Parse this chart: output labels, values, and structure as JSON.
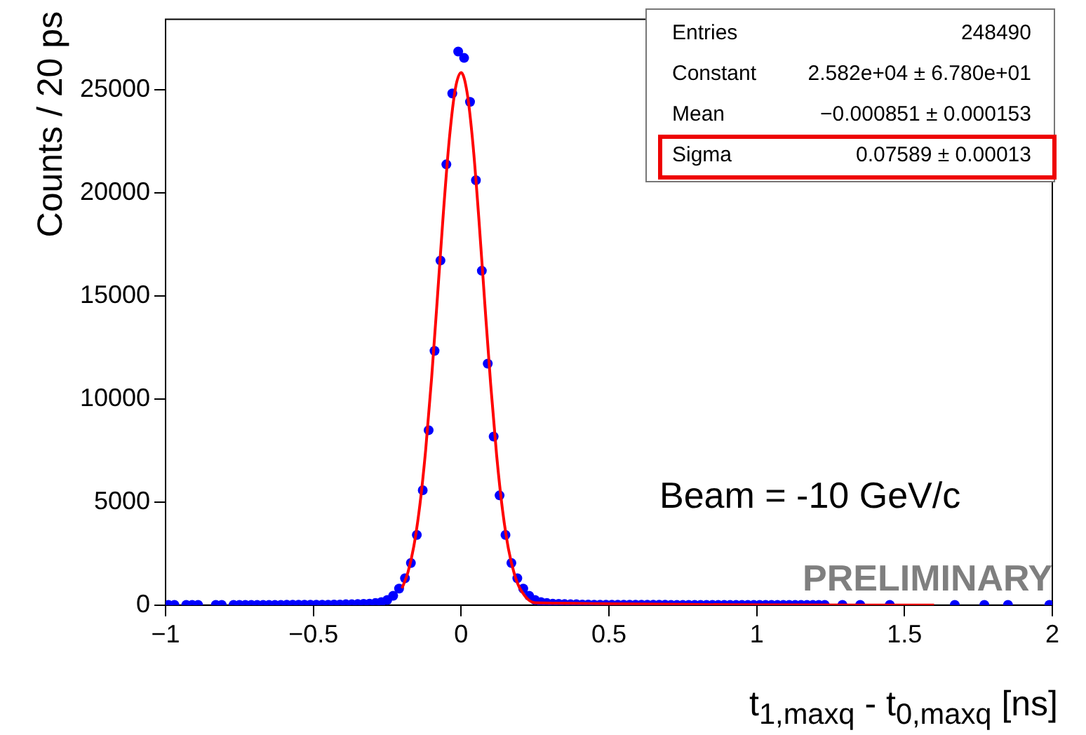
{
  "chart_data": {
    "type": "scatter",
    "xlabel": "t$_{1,maxq}$ - t$_{0,maxq}$ [ns]",
    "ylabel": "Counts / 20 ps",
    "annotations": [
      "Entries",
      "248490",
      "Constant",
      "2.582e+04 ± 6.780e+01",
      "Mean",
      "−0.000851 ± 0.000153",
      "Sigma",
      "0.07589 ± 0.00013",
      "Beam = -10 GeV/c",
      "PRELIMINARY"
    ],
    "xlim": [
      -1,
      2
    ],
    "xticks": [
      {
        "value": -1,
        "label": "−1"
      },
      {
        "value": -0.5,
        "label": "−0.5"
      },
      0,
      0.5,
      1,
      1.5,
      2
    ],
    "ylim": [
      0,
      28400
    ],
    "yticks": [
      0,
      5000,
      10000,
      15000,
      20000,
      25000
    ],
    "grid": false,
    "legend": false,
    "series": [
      {
        "type": "scatter",
        "marker": "circle",
        "color": "#0000ff",
        "x": [
          -0.99,
          -0.97,
          -0.93,
          -0.91,
          -0.89,
          -0.83,
          -0.81,
          -0.77,
          -0.75,
          -0.73,
          -0.71,
          -0.69,
          -0.67,
          -0.65,
          -0.63,
          -0.61,
          -0.59,
          -0.57,
          -0.55,
          -0.53,
          -0.51,
          -0.49,
          -0.47,
          -0.45,
          -0.43,
          -0.41,
          -0.39,
          -0.37,
          -0.35,
          -0.33,
          -0.31,
          -0.29,
          -0.27,
          -0.25,
          -0.23,
          -0.21,
          -0.19,
          -0.17,
          -0.15,
          -0.13,
          -0.11,
          -0.09,
          -0.07,
          -0.05,
          -0.03,
          -0.01,
          0.01,
          0.03,
          0.05,
          0.07,
          0.09,
          0.11,
          0.13,
          0.15,
          0.17,
          0.19,
          0.21,
          0.23,
          0.25,
          0.27,
          0.29,
          0.31,
          0.33,
          0.35,
          0.37,
          0.39,
          0.41,
          0.43,
          0.45,
          0.47,
          0.49,
          0.51,
          0.53,
          0.55,
          0.57,
          0.59,
          0.61,
          0.63,
          0.65,
          0.67,
          0.69,
          0.71,
          0.73,
          0.75,
          0.77,
          0.79,
          0.81,
          0.83,
          0.85,
          0.87,
          0.89,
          0.91,
          0.93,
          0.95,
          0.97,
          0.99,
          1.01,
          1.03,
          1.05,
          1.07,
          1.09,
          1.11,
          1.13,
          1.15,
          1.17,
          1.19,
          1.21,
          1.23,
          1.29,
          1.35,
          1.45,
          1.67,
          1.77,
          1.85,
          1.99
        ],
        "values": [
          10,
          10,
          10,
          10,
          10,
          10,
          10,
          10,
          10,
          10,
          10,
          10,
          10,
          10,
          10,
          10,
          20,
          20,
          20,
          20,
          20,
          20,
          20,
          20,
          30,
          30,
          40,
          40,
          50,
          60,
          70,
          100,
          150,
          250,
          450,
          800,
          1300,
          2040,
          3400,
          5570,
          8480,
          12330,
          16710,
          21370,
          24810,
          26840,
          26530,
          24400,
          20600,
          16210,
          11710,
          8170,
          5320,
          3400,
          2040,
          1300,
          800,
          450,
          250,
          150,
          100,
          70,
          60,
          50,
          40,
          40,
          30,
          30,
          20,
          20,
          20,
          20,
          20,
          20,
          20,
          20,
          20,
          20,
          20,
          20,
          20,
          10,
          10,
          10,
          10,
          10,
          10,
          10,
          10,
          10,
          10,
          10,
          10,
          10,
          10,
          10,
          10,
          10,
          10,
          10,
          10,
          10,
          10,
          10,
          10,
          10,
          10,
          10,
          10,
          10,
          10,
          10,
          10,
          10,
          10
        ]
      },
      {
        "type": "line",
        "marker": "none",
        "color": "#ff0000",
        "x": [
          -0.2,
          -0.18,
          -0.16,
          -0.14,
          -0.12,
          -0.1,
          -0.08,
          -0.06,
          -0.04,
          -0.02,
          0,
          0.02,
          0.04,
          0.06,
          0.08,
          0.1,
          0.12,
          0.14,
          0.16,
          0.18,
          0.2,
          0.25,
          1.56,
          1.6
        ],
        "values": [
          820,
          1590,
          2860,
          4810,
          7530,
          11000,
          14980,
          19050,
          22600,
          25010,
          25820,
          24860,
          22340,
          18720,
          14630,
          10680,
          7270,
          4610,
          2730,
          1510,
          780,
          110,
          0,
          0
        ]
      }
    ]
  }
}
